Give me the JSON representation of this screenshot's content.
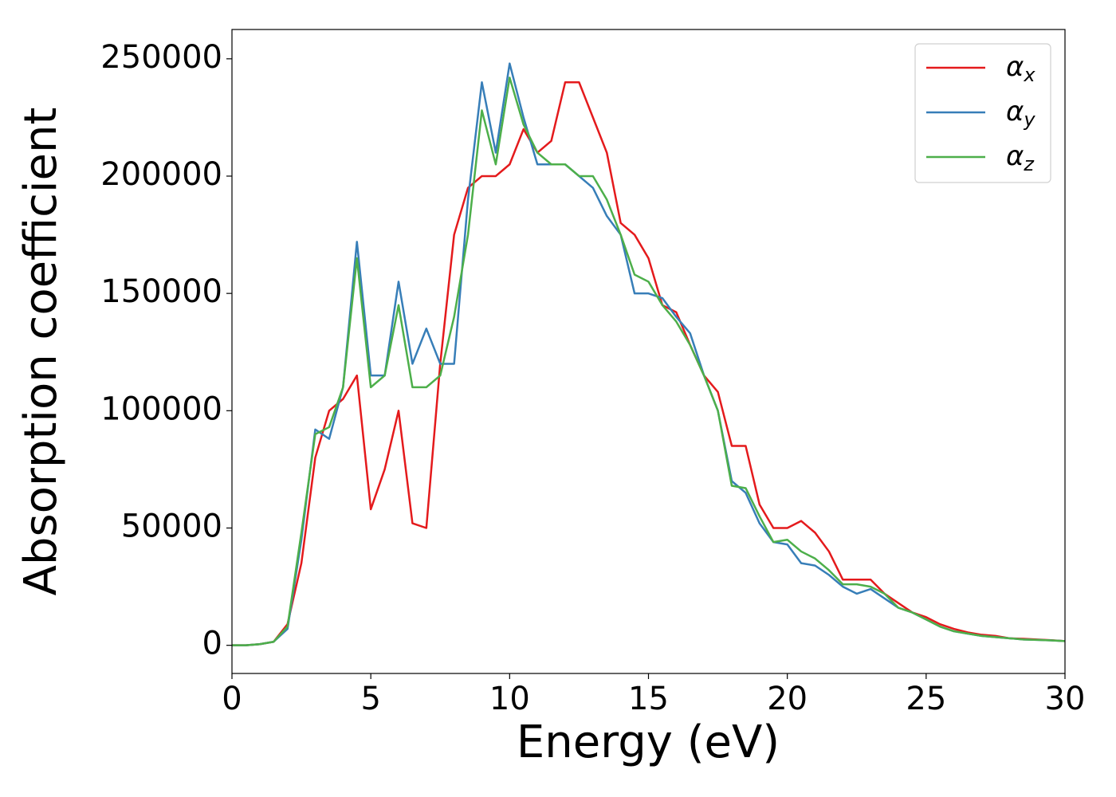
{
  "chart_data": {
    "type": "line",
    "xlabel": "Energy (eV)",
    "ylabel": "Absorption coefficient",
    "x": [
      0,
      0.5,
      1,
      1.5,
      2,
      2.5,
      3,
      3.5,
      4,
      4.5,
      5,
      5.5,
      6,
      6.5,
      7,
      7.5,
      8,
      8.5,
      9,
      9.5,
      10,
      10.5,
      11,
      11.5,
      12,
      12.5,
      13,
      13.5,
      14,
      14.5,
      15,
      15.5,
      16,
      16.5,
      17,
      17.5,
      18,
      18.5,
      19,
      19.5,
      20,
      20.5,
      21,
      21.5,
      22,
      22.5,
      23,
      23.5,
      24,
      24.5,
      25,
      25.5,
      26,
      26.5,
      27,
      27.5,
      28,
      28.5,
      29,
      29.5,
      30
    ],
    "series": [
      {
        "name": "αx",
        "color": "#e41a1c",
        "values": [
          0,
          0,
          500,
          1500,
          9000,
          35000,
          80000,
          100000,
          105000,
          115000,
          58000,
          75000,
          100000,
          52000,
          50000,
          120000,
          175000,
          195000,
          200000,
          200000,
          205000,
          220000,
          210000,
          215000,
          240000,
          240000,
          225000,
          210000,
          180000,
          175000,
          165000,
          145000,
          142000,
          128000,
          115000,
          108000,
          85000,
          85000,
          60000,
          50000,
          50000,
          53000,
          48000,
          40000,
          28000,
          28000,
          28000,
          22000,
          18000,
          14000,
          12000,
          9000,
          7000,
          5500,
          4500,
          4000,
          3000,
          2800,
          2500,
          2200,
          1800
        ]
      },
      {
        "name": "αy",
        "color": "#377eb8",
        "values": [
          0,
          0,
          500,
          1500,
          7000,
          45000,
          92000,
          88000,
          110000,
          172000,
          115000,
          115000,
          155000,
          120000,
          135000,
          120000,
          120000,
          190000,
          240000,
          210000,
          248000,
          225000,
          205000,
          205000,
          205000,
          200000,
          195000,
          183000,
          175000,
          150000,
          150000,
          148000,
          140000,
          133000,
          115000,
          100000,
          70000,
          65000,
          52000,
          44000,
          43000,
          35000,
          34000,
          30000,
          25000,
          22000,
          24000,
          20000,
          16000,
          14000,
          11000,
          8000,
          6000,
          5000,
          4000,
          3500,
          3000,
          2500,
          2300,
          2100,
          1800
        ]
      },
      {
        "name": "αz",
        "color": "#4daf4a",
        "values": [
          0,
          0,
          500,
          1500,
          8000,
          48000,
          90000,
          93000,
          110000,
          165000,
          110000,
          115000,
          145000,
          110000,
          110000,
          115000,
          140000,
          175000,
          228000,
          205000,
          242000,
          222000,
          210000,
          205000,
          205000,
          200000,
          200000,
          190000,
          175000,
          158000,
          155000,
          145000,
          138000,
          128000,
          115000,
          100000,
          68000,
          67000,
          55000,
          44000,
          45000,
          40000,
          37000,
          32000,
          26000,
          26000,
          25000,
          22000,
          16000,
          14000,
          11000,
          8000,
          6000,
          5000,
          4000,
          3500,
          3000,
          2500,
          2300,
          2100,
          1800
        ]
      }
    ],
    "xlim": [
      0,
      30
    ],
    "xticks": [
      0,
      5,
      10,
      15,
      20,
      25,
      30
    ],
    "ylim": [
      -12000,
      262500
    ],
    "yticks": [
      0,
      50000,
      100000,
      150000,
      200000,
      250000
    ],
    "grid": false,
    "legend": "upper right"
  }
}
